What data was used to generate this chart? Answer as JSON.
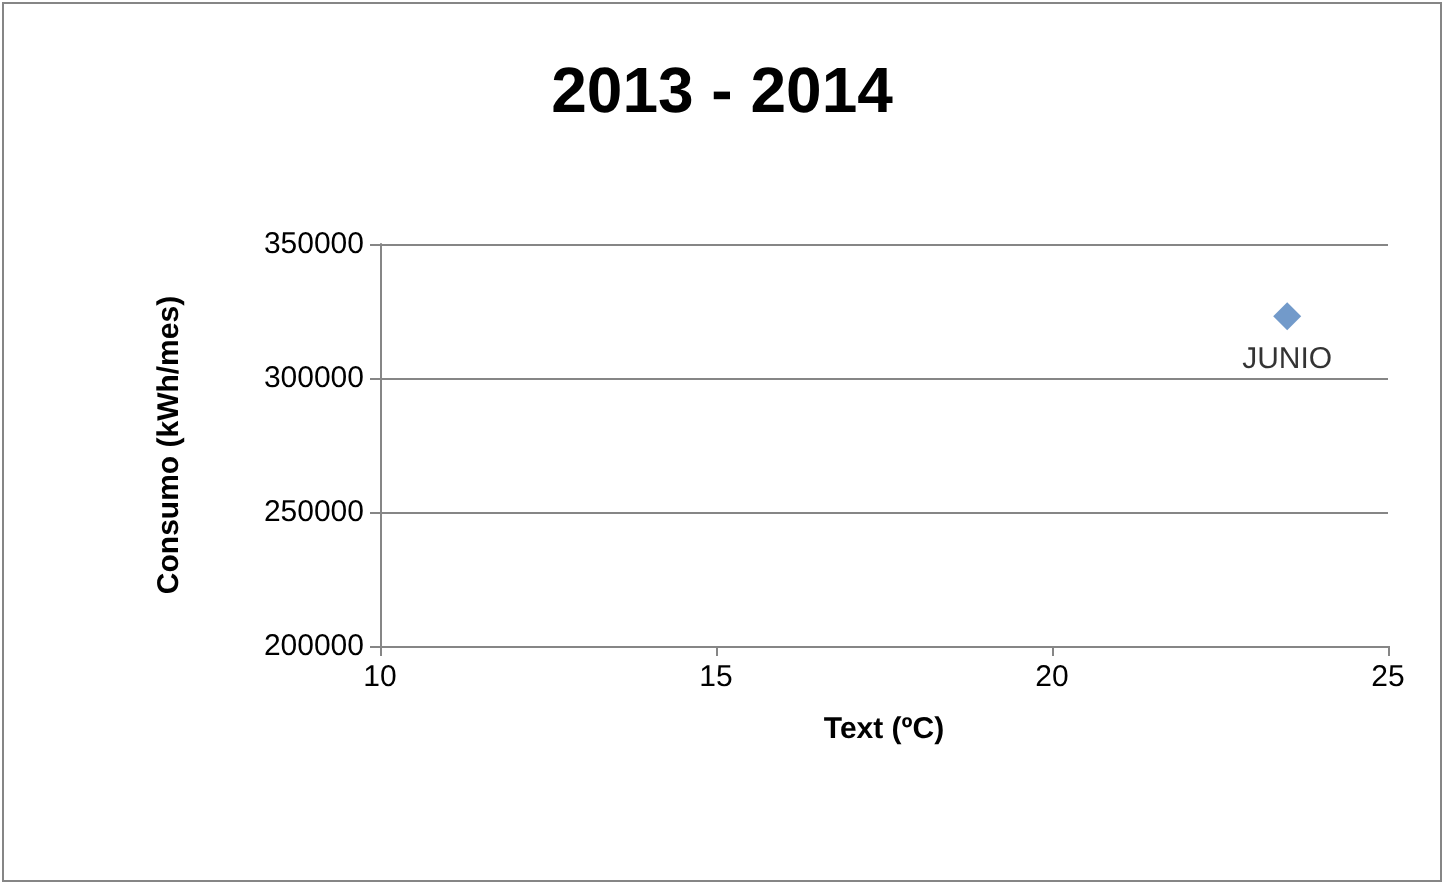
{
  "chart_data": {
    "type": "scatter",
    "title": "2013 - 2014",
    "xlabel": "Text (ºC)",
    "ylabel": "Consumo (kWh/mes)",
    "x": [
      23.5
    ],
    "series": [
      {
        "color": "#4f81bd",
        "values": [
          323000
        ]
      }
    ],
    "annotations": [
      {
        "text": "JUNIO",
        "x": 23.5,
        "y": 323000
      }
    ],
    "xlim": [
      10,
      25
    ],
    "xticks": [
      10,
      15,
      20,
      25
    ],
    "ylim": [
      200000,
      350000
    ],
    "yticks": [
      200000,
      250000,
      300000,
      350000
    ],
    "grid": "y",
    "marker": "diamond"
  }
}
